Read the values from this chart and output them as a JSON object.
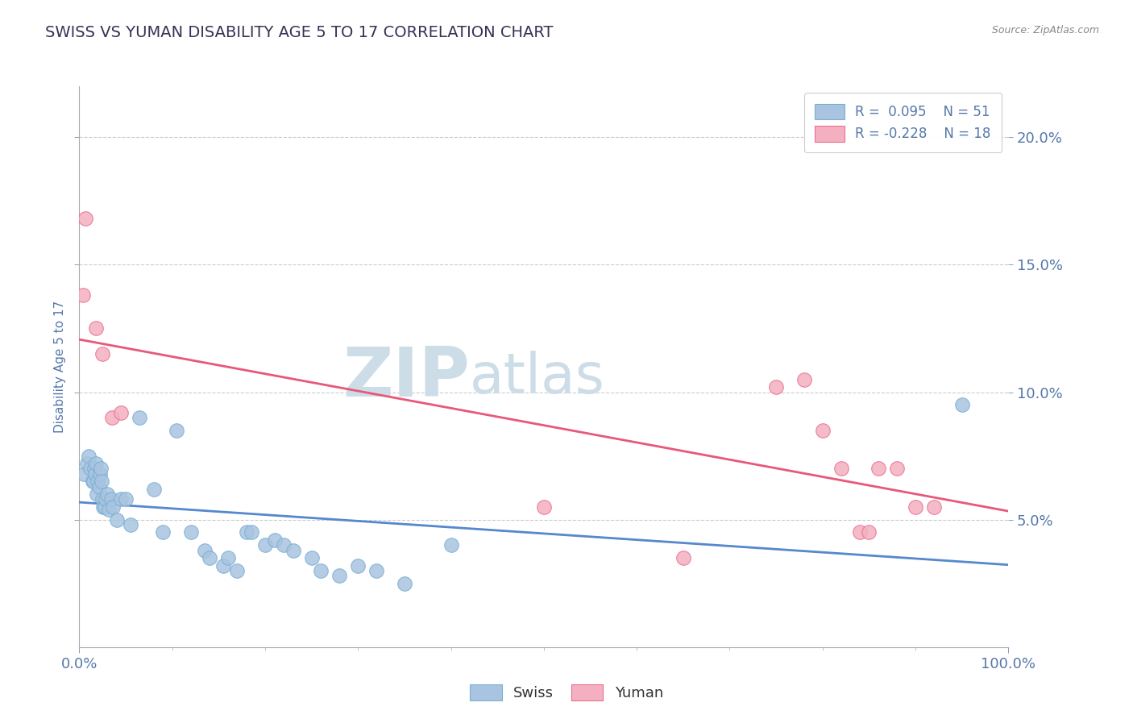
{
  "title": "SWISS VS YUMAN DISABILITY AGE 5 TO 17 CORRELATION CHART",
  "source_text": "Source: ZipAtlas.com",
  "ylabel": "Disability Age 5 to 17",
  "watermark": "ZIPatlas",
  "legend_label_swiss": "Swiss",
  "legend_label_yuman": "Yuman",
  "r_swiss": "R =  0.095",
  "n_swiss": "N = 51",
  "r_yuman": "R = -0.228",
  "n_yuman": "N = 18",
  "swiss_color": "#a8c4e0",
  "swiss_edge_color": "#7aafd4",
  "yuman_color": "#f4b0c0",
  "yuman_edge_color": "#e87090",
  "swiss_line_color": "#5588cc",
  "yuman_line_color": "#e85878",
  "title_color": "#333355",
  "axis_label_color": "#5577aa",
  "tick_color": "#5577aa",
  "grid_color": "#cccccc",
  "background_color": "#ffffff",
  "watermark_color": "#ccdde8",
  "swiss_x": [
    0.5,
    0.8,
    1.0,
    1.2,
    1.4,
    1.5,
    1.6,
    1.7,
    1.8,
    1.9,
    2.0,
    2.1,
    2.2,
    2.3,
    2.4,
    2.5,
    2.6,
    2.7,
    2.8,
    3.0,
    3.2,
    3.4,
    3.6,
    4.0,
    4.5,
    5.0,
    5.5,
    6.5,
    8.0,
    9.0,
    10.5,
    12.0,
    13.5,
    14.0,
    15.5,
    16.0,
    17.0,
    18.0,
    18.5,
    20.0,
    21.0,
    22.0,
    23.0,
    25.0,
    26.0,
    28.0,
    30.0,
    32.0,
    35.0,
    40.0,
    95.0
  ],
  "swiss_y": [
    6.8,
    7.2,
    7.5,
    7.0,
    6.5,
    6.5,
    7.0,
    6.8,
    7.2,
    6.0,
    6.5,
    6.3,
    6.8,
    7.0,
    6.5,
    5.8,
    5.5,
    5.5,
    5.8,
    6.0,
    5.4,
    5.8,
    5.5,
    5.0,
    5.8,
    5.8,
    4.8,
    9.0,
    6.2,
    4.5,
    8.5,
    4.5,
    3.8,
    3.5,
    3.2,
    3.5,
    3.0,
    4.5,
    4.5,
    4.0,
    4.2,
    4.0,
    3.8,
    3.5,
    3.0,
    2.8,
    3.2,
    3.0,
    2.5,
    4.0,
    9.5
  ],
  "yuman_x": [
    0.4,
    0.7,
    1.8,
    2.5,
    3.5,
    4.5,
    50.0,
    65.0,
    75.0,
    78.0,
    80.0,
    82.0,
    84.0,
    85.0,
    86.0,
    88.0,
    90.0,
    92.0
  ],
  "yuman_y": [
    13.8,
    16.8,
    12.5,
    11.5,
    9.0,
    9.2,
    5.5,
    3.5,
    10.2,
    10.5,
    8.5,
    7.0,
    4.5,
    4.5,
    7.0,
    7.0,
    5.5,
    5.5
  ],
  "xlim": [
    0,
    100
  ],
  "ylim": [
    0,
    22
  ],
  "y_ticks": [
    5.0,
    10.0,
    15.0,
    20.0
  ],
  "x_ticks": [
    0,
    100
  ]
}
